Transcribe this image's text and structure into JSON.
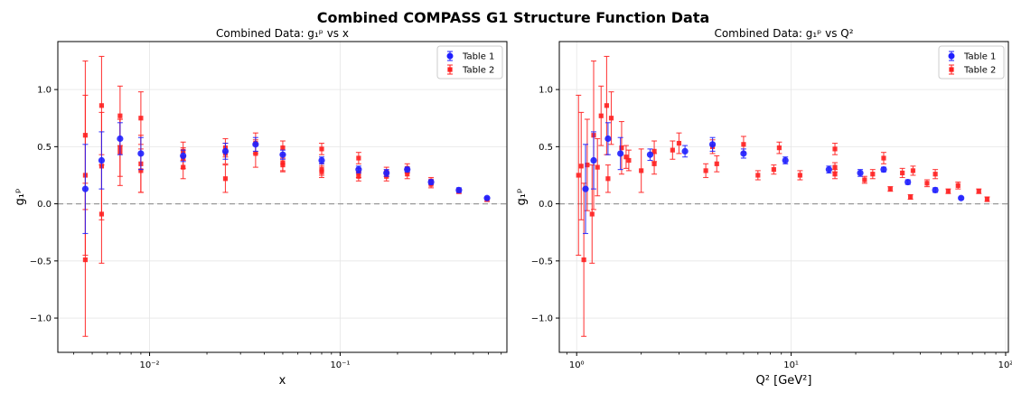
{
  "figure": {
    "title": "Combined COMPASS G1 Structure Function Data"
  },
  "colors": {
    "table1": "#1f1fff",
    "table2": "#ff2020",
    "zero_line": "#999999",
    "grid": "#e6e6e6"
  },
  "chart_data": [
    {
      "type": "scatter",
      "title": "Combined Data: g₁ᵖ vs x",
      "xlabel": "x",
      "ylabel": "g₁ᵖ",
      "xscale": "log",
      "xlim": [
        0.0033,
        0.75
      ],
      "ylim": [
        -1.3,
        1.42
      ],
      "xticks": [
        {
          "v": 0.01,
          "label": "10⁻²"
        },
        {
          "v": 0.1,
          "label": "10⁻¹"
        }
      ],
      "yticks": [
        {
          "v": -1.0,
          "label": "−1.0"
        },
        {
          "v": -0.5,
          "label": "−0.5"
        },
        {
          "v": 0.0,
          "label": "0.0"
        },
        {
          "v": 0.5,
          "label": "0.5"
        },
        {
          "v": 1.0,
          "label": "1.0"
        }
      ],
      "grid": true,
      "zero_line": true,
      "legend_position": "top-right",
      "series": [
        {
          "name": "Table 1",
          "key": "table1",
          "marker": "circle",
          "points": [
            {
              "x": 0.0046,
              "y": 0.13,
              "err": 0.39
            },
            {
              "x": 0.0056,
              "y": 0.38,
              "err": 0.25
            },
            {
              "x": 0.007,
              "y": 0.57,
              "err": 0.14
            },
            {
              "x": 0.009,
              "y": 0.44,
              "err": 0.14
            },
            {
              "x": 0.015,
              "y": 0.42,
              "err": 0.05
            },
            {
              "x": 0.025,
              "y": 0.46,
              "err": 0.07
            },
            {
              "x": 0.036,
              "y": 0.52,
              "err": 0.06
            },
            {
              "x": 0.05,
              "y": 0.43,
              "err": 0.04
            },
            {
              "x": 0.08,
              "y": 0.38,
              "err": 0.03
            },
            {
              "x": 0.125,
              "y": 0.3,
              "err": 0.03
            },
            {
              "x": 0.175,
              "y": 0.27,
              "err": 0.03
            },
            {
              "x": 0.225,
              "y": 0.3,
              "err": 0.02
            },
            {
              "x": 0.3,
              "y": 0.19,
              "err": 0.02
            },
            {
              "x": 0.42,
              "y": 0.12,
              "err": 0.02
            },
            {
              "x": 0.59,
              "y": 0.05,
              "err": 0.01
            }
          ]
        },
        {
          "name": "Table 2",
          "key": "table2",
          "marker": "square",
          "points": [
            {
              "x": 0.0046,
              "y": 0.6,
              "err": 0.65
            },
            {
              "x": 0.0046,
              "y": 0.25,
              "err": 0.7
            },
            {
              "x": 0.0046,
              "y": -0.49,
              "err": 0.67
            },
            {
              "x": 0.0056,
              "y": 0.86,
              "err": 0.43
            },
            {
              "x": 0.0056,
              "y": 0.33,
              "err": 0.47
            },
            {
              "x": 0.0056,
              "y": -0.09,
              "err": 0.43
            },
            {
              "x": 0.007,
              "y": 0.77,
              "err": 0.26
            },
            {
              "x": 0.007,
              "y": 0.49,
              "err": 0.25
            },
            {
              "x": 0.007,
              "y": 0.45,
              "err": 0.29
            },
            {
              "x": 0.009,
              "y": 0.75,
              "err": 0.23
            },
            {
              "x": 0.009,
              "y": 0.35,
              "err": 0.25
            },
            {
              "x": 0.009,
              "y": 0.29,
              "err": 0.19
            },
            {
              "x": 0.015,
              "y": 0.46,
              "err": 0.08
            },
            {
              "x": 0.015,
              "y": 0.4,
              "err": 0.09
            },
            {
              "x": 0.015,
              "y": 0.32,
              "err": 0.1
            },
            {
              "x": 0.025,
              "y": 0.49,
              "err": 0.08
            },
            {
              "x": 0.025,
              "y": 0.44,
              "err": 0.09
            },
            {
              "x": 0.025,
              "y": 0.22,
              "err": 0.12
            },
            {
              "x": 0.036,
              "y": 0.53,
              "err": 0.09
            },
            {
              "x": 0.036,
              "y": 0.44,
              "err": 0.12
            },
            {
              "x": 0.05,
              "y": 0.49,
              "err": 0.06
            },
            {
              "x": 0.05,
              "y": 0.36,
              "err": 0.07
            },
            {
              "x": 0.05,
              "y": 0.34,
              "err": 0.06
            },
            {
              "x": 0.08,
              "y": 0.48,
              "err": 0.05
            },
            {
              "x": 0.08,
              "y": 0.3,
              "err": 0.05
            },
            {
              "x": 0.08,
              "y": 0.28,
              "err": 0.05
            },
            {
              "x": 0.125,
              "y": 0.4,
              "err": 0.05
            },
            {
              "x": 0.125,
              "y": 0.27,
              "err": 0.04
            },
            {
              "x": 0.125,
              "y": 0.24,
              "err": 0.04
            },
            {
              "x": 0.175,
              "y": 0.28,
              "err": 0.04
            },
            {
              "x": 0.175,
              "y": 0.24,
              "err": 0.04
            },
            {
              "x": 0.225,
              "y": 0.31,
              "err": 0.04
            },
            {
              "x": 0.225,
              "y": 0.26,
              "err": 0.04
            },
            {
              "x": 0.3,
              "y": 0.2,
              "err": 0.03
            },
            {
              "x": 0.3,
              "y": 0.17,
              "err": 0.03
            },
            {
              "x": 0.42,
              "y": 0.11,
              "err": 0.02
            },
            {
              "x": 0.59,
              "y": 0.04,
              "err": 0.02
            }
          ]
        }
      ]
    },
    {
      "type": "scatter",
      "title": "Combined Data: g₁ᵖ vs Q²",
      "xlabel": "Q² [GeV²]",
      "ylabel": "g₁ᵖ",
      "xscale": "log",
      "xlim": [
        0.83,
        103
      ],
      "ylim": [
        -1.3,
        1.42
      ],
      "xticks": [
        {
          "v": 1,
          "label": "10⁰"
        },
        {
          "v": 10,
          "label": "10¹"
        },
        {
          "v": 100,
          "label": "10²"
        }
      ],
      "yticks": [
        {
          "v": -1.0,
          "label": "−1.0"
        },
        {
          "v": -0.5,
          "label": "−0.5"
        },
        {
          "v": 0.0,
          "label": "0.0"
        },
        {
          "v": 0.5,
          "label": "0.5"
        },
        {
          "v": 1.0,
          "label": "1.0"
        }
      ],
      "grid": true,
      "zero_line": true,
      "legend_position": "top-right",
      "series": [
        {
          "name": "Table 1",
          "key": "table1",
          "marker": "circle",
          "points": [
            {
              "x": 1.1,
              "y": 0.13,
              "err": 0.39
            },
            {
              "x": 1.2,
              "y": 0.38,
              "err": 0.25
            },
            {
              "x": 1.4,
              "y": 0.57,
              "err": 0.14
            },
            {
              "x": 1.6,
              "y": 0.44,
              "err": 0.14
            },
            {
              "x": 2.2,
              "y": 0.43,
              "err": 0.05
            },
            {
              "x": 3.2,
              "y": 0.46,
              "err": 0.05
            },
            {
              "x": 4.3,
              "y": 0.52,
              "err": 0.06
            },
            {
              "x": 6.0,
              "y": 0.44,
              "err": 0.04
            },
            {
              "x": 9.4,
              "y": 0.38,
              "err": 0.03
            },
            {
              "x": 15.0,
              "y": 0.3,
              "err": 0.03
            },
            {
              "x": 21.0,
              "y": 0.27,
              "err": 0.03
            },
            {
              "x": 27.0,
              "y": 0.3,
              "err": 0.02
            },
            {
              "x": 35.0,
              "y": 0.19,
              "err": 0.02
            },
            {
              "x": 47.0,
              "y": 0.12,
              "err": 0.02
            },
            {
              "x": 62.0,
              "y": 0.05,
              "err": 0.01
            }
          ]
        },
        {
          "name": "Table 2",
          "key": "table2",
          "marker": "square",
          "points": [
            {
              "x": 1.02,
              "y": 0.25,
              "err": 0.7
            },
            {
              "x": 1.05,
              "y": 0.33,
              "err": 0.47
            },
            {
              "x": 1.08,
              "y": -0.49,
              "err": 0.67
            },
            {
              "x": 1.12,
              "y": 0.34,
              "err": 0.4
            },
            {
              "x": 1.18,
              "y": -0.09,
              "err": 0.43
            },
            {
              "x": 1.2,
              "y": 0.6,
              "err": 0.65
            },
            {
              "x": 1.25,
              "y": 0.32,
              "err": 0.25
            },
            {
              "x": 1.3,
              "y": 0.77,
              "err": 0.26
            },
            {
              "x": 1.38,
              "y": 0.86,
              "err": 0.43
            },
            {
              "x": 1.4,
              "y": 0.22,
              "err": 0.12
            },
            {
              "x": 1.45,
              "y": 0.75,
              "err": 0.23
            },
            {
              "x": 1.62,
              "y": 0.49,
              "err": 0.23
            },
            {
              "x": 1.7,
              "y": 0.41,
              "err": 0.1
            },
            {
              "x": 1.75,
              "y": 0.38,
              "err": 0.09
            },
            {
              "x": 2.0,
              "y": 0.29,
              "err": 0.19
            },
            {
              "x": 2.3,
              "y": 0.46,
              "err": 0.09
            },
            {
              "x": 2.3,
              "y": 0.35,
              "err": 0.09
            },
            {
              "x": 2.8,
              "y": 0.47,
              "err": 0.08
            },
            {
              "x": 3.0,
              "y": 0.53,
              "err": 0.09
            },
            {
              "x": 4.0,
              "y": 0.29,
              "err": 0.06
            },
            {
              "x": 4.3,
              "y": 0.5,
              "err": 0.06
            },
            {
              "x": 4.5,
              "y": 0.35,
              "err": 0.07
            },
            {
              "x": 6.0,
              "y": 0.52,
              "err": 0.07
            },
            {
              "x": 7.0,
              "y": 0.25,
              "err": 0.04
            },
            {
              "x": 8.3,
              "y": 0.3,
              "err": 0.04
            },
            {
              "x": 8.8,
              "y": 0.49,
              "err": 0.05
            },
            {
              "x": 11.0,
              "y": 0.25,
              "err": 0.04
            },
            {
              "x": 16.0,
              "y": 0.48,
              "err": 0.05
            },
            {
              "x": 16.0,
              "y": 0.32,
              "err": 0.04
            },
            {
              "x": 16.0,
              "y": 0.26,
              "err": 0.04
            },
            {
              "x": 22.0,
              "y": 0.21,
              "err": 0.03
            },
            {
              "x": 24.0,
              "y": 0.26,
              "err": 0.04
            },
            {
              "x": 27.0,
              "y": 0.4,
              "err": 0.05
            },
            {
              "x": 29.0,
              "y": 0.13,
              "err": 0.02
            },
            {
              "x": 33.0,
              "y": 0.27,
              "err": 0.04
            },
            {
              "x": 36.0,
              "y": 0.06,
              "err": 0.02
            },
            {
              "x": 37.0,
              "y": 0.29,
              "err": 0.04
            },
            {
              "x": 43.0,
              "y": 0.18,
              "err": 0.03
            },
            {
              "x": 47.0,
              "y": 0.26,
              "err": 0.04
            },
            {
              "x": 54.0,
              "y": 0.11,
              "err": 0.02
            },
            {
              "x": 60.0,
              "y": 0.16,
              "err": 0.03
            },
            {
              "x": 75.0,
              "y": 0.11,
              "err": 0.02
            },
            {
              "x": 82.0,
              "y": 0.04,
              "err": 0.02
            }
          ]
        }
      ]
    }
  ]
}
